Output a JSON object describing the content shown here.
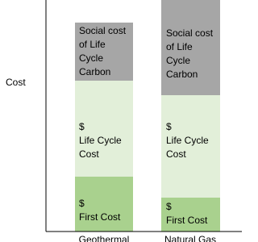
{
  "axis_label": "Cost",
  "bars": [
    {
      "label": "Geothermal",
      "segments": [
        {
          "lines": [
            "Social cost",
            "of Life",
            "Cycle",
            "Carbon"
          ]
        },
        {
          "lines": [
            "$",
            "Life Cycle",
            "Cost"
          ]
        },
        {
          "lines": [
            "$",
            "First Cost"
          ]
        }
      ]
    },
    {
      "label": "Natural Gas",
      "segments": [
        {
          "lines": [
            "Social cost",
            "of Life",
            "Cycle",
            "Carbon"
          ]
        },
        {
          "lines": [
            "$",
            "Life Cycle",
            "Cost"
          ]
        },
        {
          "lines": [
            "$",
            "First Cost"
          ]
        }
      ]
    }
  ]
}
